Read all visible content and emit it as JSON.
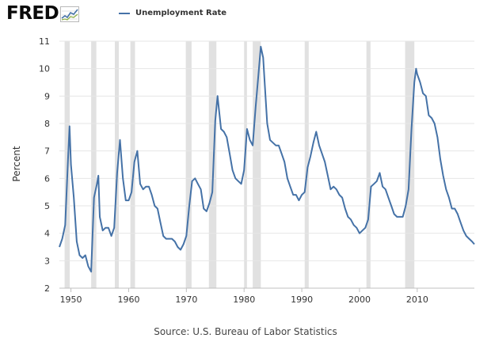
{
  "header": {
    "logo_text": "FRED",
    "logo_mark_icon": "sparkline-chart-icon",
    "legend_label": "Unemployment Rate",
    "legend_color": "#4572a7"
  },
  "footer": {
    "source": "Source: U.S. Bureau of Labor Statistics"
  },
  "chart_data": {
    "type": "line",
    "title": "",
    "xlabel": "",
    "ylabel": "Percent",
    "xlim": [
      1948,
      2019.9
    ],
    "ylim": [
      2,
      11
    ],
    "x_ticks": [
      1950,
      1960,
      1970,
      1980,
      1990,
      2000,
      2010
    ],
    "y_ticks": [
      2,
      3,
      4,
      5,
      6,
      7,
      8,
      9,
      10,
      11
    ],
    "grid": "horizontal",
    "legend_placement": "top-left",
    "line_color": "#4572a7",
    "recession_color": "#e1e1e1",
    "recessions": [
      [
        1948.9,
        1949.8
      ],
      [
        1953.5,
        1954.4
      ],
      [
        1957.6,
        1958.3
      ],
      [
        1960.3,
        1961.1
      ],
      [
        1969.9,
        1970.9
      ],
      [
        1973.9,
        1975.2
      ],
      [
        1980.0,
        1980.5
      ],
      [
        1981.5,
        1982.9
      ],
      [
        1990.5,
        1991.2
      ],
      [
        2001.2,
        2001.9
      ],
      [
        2007.9,
        2009.5
      ]
    ],
    "series": [
      {
        "name": "Unemployment Rate",
        "x": [
          1948.0,
          1948.5,
          1949.0,
          1949.5,
          1949.75,
          1950.0,
          1950.5,
          1951.0,
          1951.5,
          1952.0,
          1952.5,
          1953.0,
          1953.5,
          1954.0,
          1954.5,
          1954.75,
          1955.0,
          1955.5,
          1956.0,
          1956.5,
          1957.0,
          1957.5,
          1958.0,
          1958.5,
          1959.0,
          1959.5,
          1960.0,
          1960.5,
          1961.0,
          1961.5,
          1962.0,
          1962.5,
          1963.0,
          1963.5,
          1964.0,
          1964.5,
          1965.0,
          1965.5,
          1966.0,
          1966.5,
          1967.0,
          1967.5,
          1968.0,
          1968.5,
          1969.0,
          1969.5,
          1970.0,
          1970.5,
          1971.0,
          1971.5,
          1972.0,
          1972.5,
          1973.0,
          1973.5,
          1974.0,
          1974.5,
          1975.0,
          1975.4,
          1975.7,
          1976.0,
          1976.5,
          1977.0,
          1977.5,
          1978.0,
          1978.5,
          1979.0,
          1979.5,
          1980.0,
          1980.5,
          1981.0,
          1981.5,
          1982.0,
          1982.5,
          1982.9,
          1983.3,
          1983.6,
          1984.0,
          1984.5,
          1985.0,
          1985.5,
          1986.0,
          1986.5,
          1987.0,
          1987.5,
          1988.0,
          1988.5,
          1989.0,
          1989.5,
          1990.0,
          1990.5,
          1991.0,
          1991.5,
          1992.0,
          1992.5,
          1993.0,
          1993.5,
          1994.0,
          1994.5,
          1995.0,
          1995.5,
          1996.0,
          1996.5,
          1997.0,
          1997.5,
          1998.0,
          1998.5,
          1999.0,
          1999.5,
          2000.0,
          2000.5,
          2001.0,
          2001.5,
          2002.0,
          2002.5,
          2003.0,
          2003.5,
          2004.0,
          2004.5,
          2005.0,
          2005.5,
          2006.0,
          2006.5,
          2007.0,
          2007.5,
          2008.0,
          2008.5,
          2009.0,
          2009.5,
          2009.8,
          2010.0,
          2010.5,
          2011.0,
          2011.5,
          2012.0,
          2012.5,
          2013.0,
          2013.5,
          2014.0,
          2014.5,
          2015.0,
          2015.5,
          2016.0,
          2016.5,
          2017.0,
          2017.5,
          2018.0,
          2018.5,
          2019.0,
          2019.5,
          2019.9
        ],
        "values": [
          3.5,
          3.8,
          4.3,
          6.7,
          7.9,
          6.5,
          5.3,
          3.7,
          3.2,
          3.1,
          3.2,
          2.8,
          2.6,
          5.3,
          5.8,
          6.1,
          4.6,
          4.1,
          4.2,
          4.2,
          3.9,
          4.2,
          6.2,
          7.4,
          6.0,
          5.2,
          5.2,
          5.5,
          6.6,
          7.0,
          5.8,
          5.6,
          5.7,
          5.7,
          5.4,
          5.0,
          4.9,
          4.4,
          3.9,
          3.8,
          3.8,
          3.8,
          3.7,
          3.5,
          3.4,
          3.6,
          3.9,
          5.0,
          5.9,
          6.0,
          5.8,
          5.6,
          4.9,
          4.8,
          5.1,
          5.5,
          8.1,
          9.0,
          8.4,
          7.8,
          7.7,
          7.5,
          6.9,
          6.3,
          6.0,
          5.9,
          5.8,
          6.3,
          7.8,
          7.4,
          7.2,
          8.6,
          9.8,
          10.8,
          10.4,
          9.4,
          8.0,
          7.4,
          7.3,
          7.2,
          7.2,
          6.9,
          6.6,
          6.0,
          5.7,
          5.4,
          5.4,
          5.2,
          5.4,
          5.5,
          6.4,
          6.8,
          7.3,
          7.7,
          7.2,
          6.9,
          6.6,
          6.1,
          5.6,
          5.7,
          5.6,
          5.4,
          5.3,
          4.9,
          4.6,
          4.5,
          4.3,
          4.2,
          4.0,
          4.1,
          4.2,
          4.5,
          5.7,
          5.8,
          5.9,
          6.2,
          5.7,
          5.6,
          5.3,
          5.0,
          4.7,
          4.6,
          4.6,
          4.6,
          5.0,
          5.6,
          7.8,
          9.5,
          10.0,
          9.8,
          9.5,
          9.1,
          9.0,
          8.3,
          8.2,
          8.0,
          7.5,
          6.7,
          6.1,
          5.6,
          5.3,
          4.9,
          4.9,
          4.7,
          4.4,
          4.1,
          3.9,
          3.8,
          3.7,
          3.6
        ]
      }
    ]
  }
}
